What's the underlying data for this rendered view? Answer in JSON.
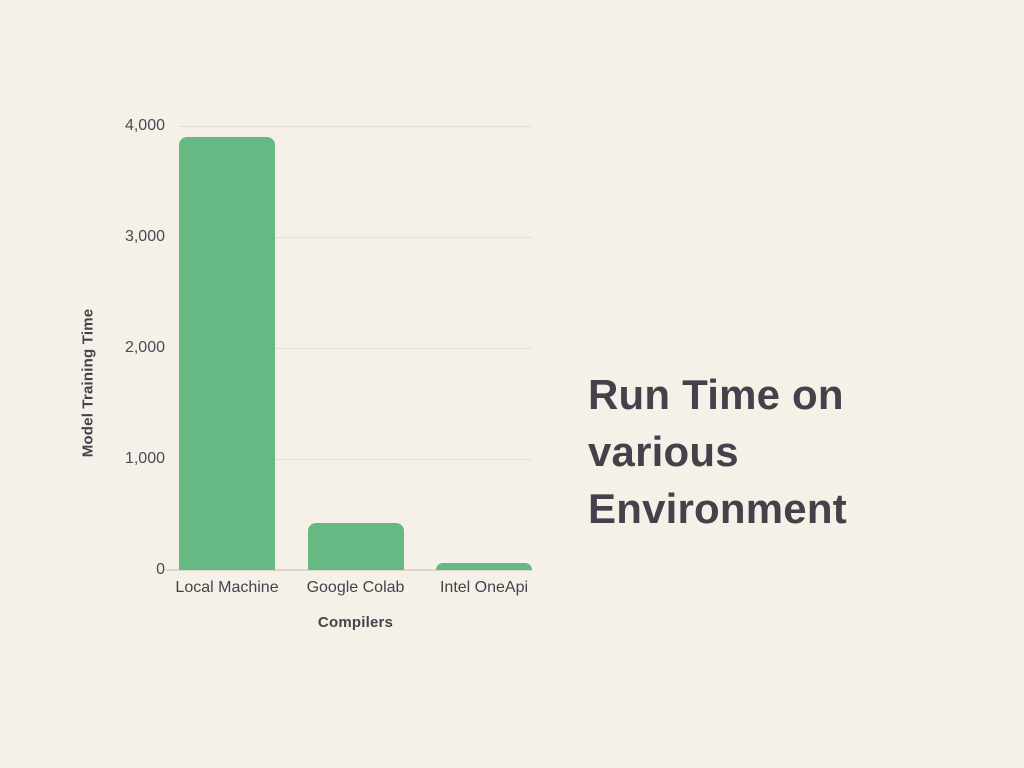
{
  "title_block": {
    "text": "Run Time on various Environment"
  },
  "colors": {
    "background": "#f5f1e8",
    "bar": "#66b983",
    "title_text": "#45414a",
    "axis_title_text": "#45424a",
    "tick_text": "#4c4952",
    "gridline": "#e5e0d5",
    "baseline": "#dbd6ca"
  },
  "chart_data": {
    "type": "bar",
    "title": "Run Time on various Environment",
    "categories": [
      "Local Machine",
      "Google Colab",
      "Intel OneApi"
    ],
    "values": [
      3900,
      420,
      60
    ],
    "xlabel": "Compilers",
    "ylabel": "Model Training Time",
    "ylim": [
      0,
      4000
    ],
    "yticks": [
      0,
      1000,
      2000,
      3000,
      4000
    ],
    "ytick_labels": [
      "0",
      "1,000",
      "2,000",
      "3,000",
      "4,000"
    ],
    "grid": true,
    "legend": false,
    "bar_color": "#66b983"
  }
}
